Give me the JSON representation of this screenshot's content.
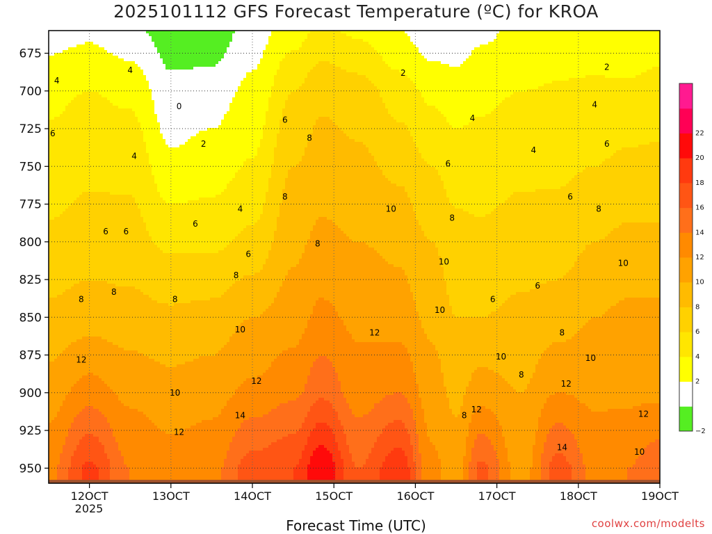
{
  "chart_data": {
    "type": "contour",
    "title": "2025101112 GFS Forecast Temperature (ºC) for KROA",
    "xlabel": "Forecast Time (UTC)",
    "ylabel": "",
    "y_unit": "hPa",
    "ylim": [
      960,
      660
    ],
    "yticks": [
      675,
      700,
      725,
      750,
      775,
      800,
      825,
      850,
      875,
      900,
      925,
      950
    ],
    "xlim_days": [
      11.5,
      19.0
    ],
    "xticks": [
      {
        "day": 12,
        "label": "12OCT"
      },
      {
        "day": 13,
        "label": "13OCT"
      },
      {
        "day": 14,
        "label": "14OCT"
      },
      {
        "day": 15,
        "label": "15OCT"
      },
      {
        "day": 16,
        "label": "16OCT"
      },
      {
        "day": 17,
        "label": "17OCT"
      },
      {
        "day": 18,
        "label": "18OCT"
      },
      {
        "day": 19,
        "label": "19OCT"
      }
    ],
    "year_label": "2025",
    "surface_pressure_hPa": 955,
    "colorbar": {
      "levels": [
        -2,
        0,
        2,
        4,
        6,
        8,
        10,
        12,
        14,
        16,
        18,
        20,
        22,
        24
      ],
      "labels": [
        "−2",
        "2",
        "4",
        "6",
        "8",
        "10",
        "12",
        "14",
        "16",
        "18",
        "20",
        "22"
      ],
      "colors": [
        "#55ee22",
        "#ffffff",
        "#ffff00",
        "#ffe600",
        "#ffd100",
        "#ffbb00",
        "#ffa200",
        "#ff8a00",
        "#ff6f1a",
        "#ff5514",
        "#ff3a0f",
        "#ff0a0a",
        "#ff0055",
        "#ff1a90"
      ]
    },
    "profiles": [
      {
        "day": 11.5,
        "T": [
          [
            660,
            1
          ],
          [
            700,
            3.5
          ],
          [
            750,
            4.8
          ],
          [
            800,
            6.5
          ],
          [
            850,
            8.5
          ],
          [
            900,
            11
          ],
          [
            950,
            13.5
          ]
        ]
      },
      {
        "day": 12.0,
        "T": [
          [
            660,
            1.5
          ],
          [
            700,
            4
          ],
          [
            750,
            5.5
          ],
          [
            800,
            7
          ],
          [
            850,
            9
          ],
          [
            900,
            13
          ],
          [
            950,
            18.5
          ]
        ]
      },
      {
        "day": 12.5,
        "T": [
          [
            660,
            0.5
          ],
          [
            700,
            3.5
          ],
          [
            750,
            5.5
          ],
          [
            800,
            6.8
          ],
          [
            850,
            8.8
          ],
          [
            900,
            11.5
          ],
          [
            950,
            14
          ]
        ]
      },
      {
        "day": 13.0,
        "T": [
          [
            660,
            -1
          ],
          [
            700,
            0.5
          ],
          [
            750,
            2.5
          ],
          [
            800,
            5.5
          ],
          [
            850,
            8.5
          ],
          [
            900,
            10.8
          ],
          [
            950,
            13
          ]
        ]
      },
      {
        "day": 13.5,
        "T": [
          [
            660,
            -1.5
          ],
          [
            700,
            1
          ],
          [
            750,
            3
          ],
          [
            800,
            5.5
          ],
          [
            850,
            8.8
          ],
          [
            900,
            11.2
          ],
          [
            950,
            13.5
          ]
        ]
      },
      {
        "day": 14.0,
        "T": [
          [
            660,
            1
          ],
          [
            700,
            2.5
          ],
          [
            750,
            4.2
          ],
          [
            800,
            6.5
          ],
          [
            850,
            10
          ],
          [
            900,
            12.5
          ],
          [
            950,
            17
          ]
        ]
      },
      {
        "day": 14.5,
        "T": [
          [
            660,
            3
          ],
          [
            700,
            6
          ],
          [
            750,
            8
          ],
          [
            800,
            9.5
          ],
          [
            850,
            11
          ],
          [
            900,
            13.5
          ],
          [
            950,
            18
          ]
        ]
      },
      {
        "day": 14.85,
        "T": [
          [
            660,
            4.5
          ],
          [
            700,
            7.5
          ],
          [
            750,
            9
          ],
          [
            800,
            10.5
          ],
          [
            850,
            12.5
          ],
          [
            900,
            15.5
          ],
          [
            950,
            22
          ]
        ]
      },
      {
        "day": 15.3,
        "T": [
          [
            660,
            3.5
          ],
          [
            700,
            7
          ],
          [
            750,
            8.5
          ],
          [
            800,
            10
          ],
          [
            850,
            11.5
          ],
          [
            900,
            13
          ],
          [
            950,
            16
          ]
        ]
      },
      {
        "day": 15.8,
        "T": [
          [
            660,
            2
          ],
          [
            700,
            5
          ],
          [
            750,
            7.5
          ],
          [
            800,
            9.5
          ],
          [
            850,
            11
          ],
          [
            900,
            14
          ],
          [
            950,
            19.5
          ]
        ]
      },
      {
        "day": 16.2,
        "T": [
          [
            660,
            0.5
          ],
          [
            700,
            3.5
          ],
          [
            750,
            6
          ],
          [
            800,
            8
          ],
          [
            850,
            9.5
          ],
          [
            900,
            11
          ],
          [
            950,
            12.5
          ]
        ]
      },
      {
        "day": 16.5,
        "T": [
          [
            660,
            0.5
          ],
          [
            700,
            3
          ],
          [
            750,
            5
          ],
          [
            800,
            6.8
          ],
          [
            850,
            8
          ],
          [
            900,
            9.5
          ],
          [
            950,
            11
          ]
        ]
      },
      {
        "day": 16.8,
        "T": [
          [
            660,
            1.5
          ],
          [
            700,
            3.5
          ],
          [
            750,
            5
          ],
          [
            800,
            6.5
          ],
          [
            850,
            8
          ],
          [
            900,
            11
          ],
          [
            950,
            16.5
          ]
        ]
      },
      {
        "day": 17.3,
        "T": [
          [
            660,
            2.5
          ],
          [
            700,
            4
          ],
          [
            750,
            5.5
          ],
          [
            800,
            7
          ],
          [
            850,
            8.5
          ],
          [
            900,
            10
          ],
          [
            950,
            11
          ]
        ]
      },
      {
        "day": 17.75,
        "T": [
          [
            660,
            3
          ],
          [
            700,
            4.2
          ],
          [
            750,
            5.6
          ],
          [
            800,
            7
          ],
          [
            850,
            9
          ],
          [
            900,
            12
          ],
          [
            950,
            17
          ]
        ]
      },
      {
        "day": 18.2,
        "T": [
          [
            660,
            2.5
          ],
          [
            700,
            4.5
          ],
          [
            750,
            6
          ],
          [
            800,
            8
          ],
          [
            850,
            10
          ],
          [
            900,
            11.5
          ],
          [
            950,
            13.5
          ]
        ]
      },
      {
        "day": 18.6,
        "T": [
          [
            660,
            2
          ],
          [
            700,
            4.5
          ],
          [
            750,
            6.5
          ],
          [
            800,
            8.5
          ],
          [
            850,
            10.5
          ],
          [
            900,
            11.5
          ],
          [
            950,
            14
          ]
        ]
      },
      {
        "day": 19.0,
        "T": [
          [
            660,
            2.5
          ],
          [
            700,
            5
          ],
          [
            750,
            6.5
          ],
          [
            800,
            8.5
          ],
          [
            850,
            10.5
          ],
          [
            900,
            11.5
          ],
          [
            950,
            15.5
          ]
        ]
      }
    ],
    "contour_labels": [
      {
        "day": 11.6,
        "p": 695,
        "text": "4"
      },
      {
        "day": 11.55,
        "p": 730,
        "text": "6"
      },
      {
        "day": 12.5,
        "p": 688,
        "text": "4"
      },
      {
        "day": 12.55,
        "p": 745,
        "text": "4"
      },
      {
        "day": 12.2,
        "p": 795,
        "text": "6"
      },
      {
        "day": 12.45,
        "p": 795,
        "text": "6"
      },
      {
        "day": 11.9,
        "p": 840,
        "text": "8"
      },
      {
        "day": 12.3,
        "p": 835,
        "text": "8"
      },
      {
        "day": 11.9,
        "p": 880,
        "text": "12"
      },
      {
        "day": 13.1,
        "p": 712,
        "text": "0"
      },
      {
        "day": 13.4,
        "p": 737,
        "text": "2"
      },
      {
        "day": 13.3,
        "p": 790,
        "text": "6"
      },
      {
        "day": 13.05,
        "p": 840,
        "text": "8"
      },
      {
        "day": 13.05,
        "p": 902,
        "text": "10"
      },
      {
        "day": 13.1,
        "p": 928,
        "text": "12"
      },
      {
        "day": 13.85,
        "p": 780,
        "text": "4"
      },
      {
        "day": 13.95,
        "p": 810,
        "text": "6"
      },
      {
        "day": 13.8,
        "p": 824,
        "text": "8"
      },
      {
        "day": 13.85,
        "p": 860,
        "text": "10"
      },
      {
        "day": 14.05,
        "p": 894,
        "text": "12"
      },
      {
        "day": 13.85,
        "p": 917,
        "text": "14"
      },
      {
        "day": 14.4,
        "p": 721,
        "text": "6"
      },
      {
        "day": 14.7,
        "p": 733,
        "text": "8"
      },
      {
        "day": 14.4,
        "p": 772,
        "text": "8"
      },
      {
        "day": 14.8,
        "p": 803,
        "text": "8"
      },
      {
        "day": 15.7,
        "p": 780,
        "text": "10"
      },
      {
        "day": 15.5,
        "p": 862,
        "text": "12"
      },
      {
        "day": 16.7,
        "p": 720,
        "text": "4"
      },
      {
        "day": 16.4,
        "p": 750,
        "text": "6"
      },
      {
        "day": 16.45,
        "p": 786,
        "text": "8"
      },
      {
        "day": 16.35,
        "p": 815,
        "text": "10"
      },
      {
        "day": 16.3,
        "p": 847,
        "text": "10"
      },
      {
        "day": 16.95,
        "p": 840,
        "text": "6"
      },
      {
        "day": 17.45,
        "p": 741,
        "text": "4"
      },
      {
        "day": 17.5,
        "p": 831,
        "text": "6"
      },
      {
        "day": 16.6,
        "p": 917,
        "text": "8"
      },
      {
        "day": 16.75,
        "p": 913,
        "text": "12"
      },
      {
        "day": 17.05,
        "p": 878,
        "text": "10"
      },
      {
        "day": 17.3,
        "p": 890,
        "text": "8"
      },
      {
        "day": 17.9,
        "p": 772,
        "text": "6"
      },
      {
        "day": 18.25,
        "p": 780,
        "text": "8"
      },
      {
        "day": 18.35,
        "p": 686,
        "text": "2"
      },
      {
        "day": 18.2,
        "p": 711,
        "text": "4"
      },
      {
        "day": 18.35,
        "p": 737,
        "text": "6"
      },
      {
        "day": 17.8,
        "p": 862,
        "text": "8"
      },
      {
        "day": 17.85,
        "p": 896,
        "text": "12"
      },
      {
        "day": 18.15,
        "p": 879,
        "text": "10"
      },
      {
        "day": 17.8,
        "p": 938,
        "text": "14"
      },
      {
        "day": 18.55,
        "p": 816,
        "text": "10"
      },
      {
        "day": 18.8,
        "p": 916,
        "text": "12"
      },
      {
        "day": 18.75,
        "p": 941,
        "text": "10"
      },
      {
        "day": 15.85,
        "p": 690,
        "text": "2"
      }
    ]
  },
  "credit": "coolwx.com/modelts"
}
